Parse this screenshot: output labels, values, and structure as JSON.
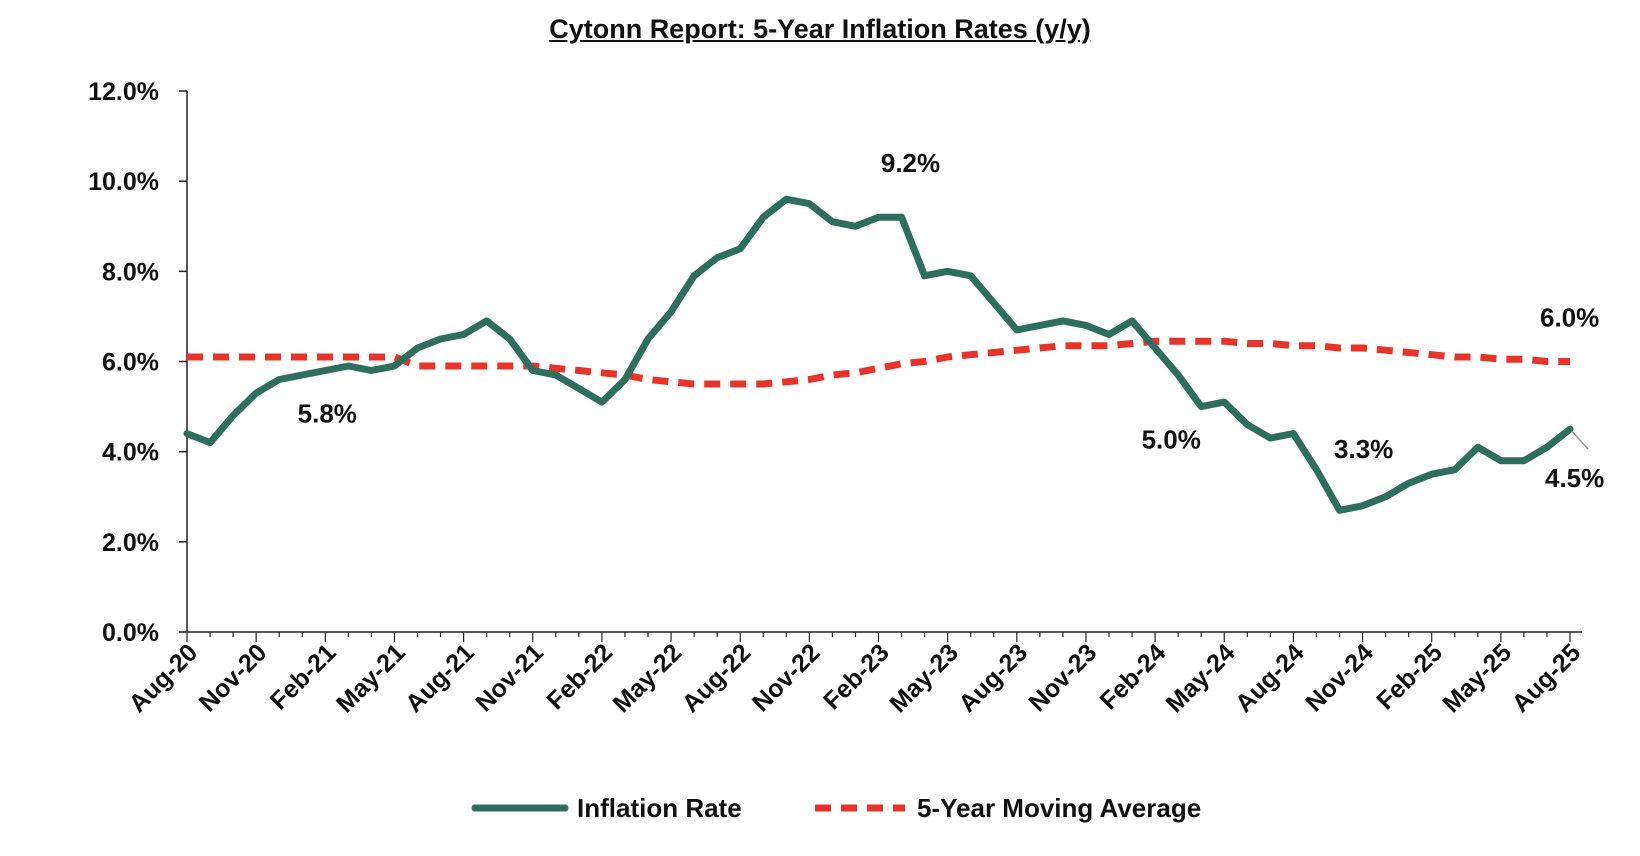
{
  "chart_data": {
    "type": "line",
    "title": "Cytonn Report: 5-Year Inflation Rates (y/y)",
    "xlabel": "",
    "ylabel": "",
    "ylim": [
      0,
      12
    ],
    "y_ticks": [
      "0.0%",
      "2.0%",
      "4.0%",
      "6.0%",
      "8.0%",
      "10.0%",
      "12.0%"
    ],
    "x_tick_labels": [
      "Aug-20",
      "Nov-20",
      "Feb-21",
      "May-21",
      "Aug-21",
      "Nov-21",
      "Feb-22",
      "May-22",
      "Aug-22",
      "Nov-22",
      "Feb-23",
      "May-23",
      "Aug-23",
      "Nov-23",
      "Feb-24",
      "May-24",
      "Aug-24",
      "Nov-24",
      "Feb-25",
      "May-25",
      "Aug-25"
    ],
    "x": [
      "Aug-20",
      "Sep-20",
      "Oct-20",
      "Nov-20",
      "Dec-20",
      "Jan-21",
      "Feb-21",
      "Mar-21",
      "Apr-21",
      "May-21",
      "Jun-21",
      "Jul-21",
      "Aug-21",
      "Sep-21",
      "Oct-21",
      "Nov-21",
      "Dec-21",
      "Jan-22",
      "Feb-22",
      "Mar-22",
      "Apr-22",
      "May-22",
      "Jun-22",
      "Jul-22",
      "Aug-22",
      "Sep-22",
      "Oct-22",
      "Nov-22",
      "Dec-22",
      "Jan-23",
      "Feb-23",
      "Mar-23",
      "Apr-23",
      "May-23",
      "Jun-23",
      "Jul-23",
      "Aug-23",
      "Sep-23",
      "Oct-23",
      "Nov-23",
      "Dec-23",
      "Jan-24",
      "Feb-24",
      "Mar-24",
      "Apr-24",
      "May-24",
      "Jun-24",
      "Jul-24",
      "Aug-24",
      "Sep-24",
      "Oct-24",
      "Nov-24",
      "Dec-24",
      "Jan-25",
      "Feb-25",
      "Mar-25",
      "Apr-25",
      "May-25",
      "Jun-25",
      "Jul-25",
      "Aug-25"
    ],
    "series": [
      {
        "name": "Inflation Rate",
        "color": "#2e6e5c",
        "style": "solid",
        "values": [
          4.4,
          4.2,
          4.8,
          5.3,
          5.6,
          5.7,
          5.8,
          5.9,
          5.8,
          5.9,
          6.3,
          6.5,
          6.6,
          6.9,
          6.5,
          5.8,
          5.7,
          5.4,
          5.1,
          5.6,
          6.5,
          7.1,
          7.9,
          8.3,
          8.5,
          9.2,
          9.6,
          9.5,
          9.1,
          9.0,
          9.2,
          9.2,
          7.9,
          8.0,
          7.9,
          7.3,
          6.7,
          6.8,
          6.9,
          6.8,
          6.6,
          6.9,
          6.3,
          5.7,
          5.0,
          5.1,
          4.6,
          4.3,
          4.4,
          3.6,
          2.7,
          2.8,
          3.0,
          3.3,
          3.5,
          3.6,
          4.1,
          3.8,
          3.8,
          4.1,
          4.5
        ]
      },
      {
        "name": "5-Year Moving Average",
        "color": "#e8332a",
        "style": "dashed",
        "values": [
          6.1,
          6.1,
          6.1,
          6.1,
          6.1,
          6.1,
          6.1,
          6.1,
          6.1,
          6.1,
          5.9,
          5.9,
          5.9,
          5.9,
          5.9,
          5.9,
          5.85,
          5.8,
          5.75,
          5.7,
          5.6,
          5.55,
          5.5,
          5.5,
          5.5,
          5.5,
          5.55,
          5.6,
          5.7,
          5.75,
          5.85,
          5.95,
          6.0,
          6.1,
          6.15,
          6.2,
          6.25,
          6.3,
          6.35,
          6.35,
          6.35,
          6.4,
          6.45,
          6.45,
          6.45,
          6.45,
          6.4,
          6.4,
          6.35,
          6.35,
          6.3,
          6.3,
          6.25,
          6.2,
          6.15,
          6.1,
          6.1,
          6.05,
          6.05,
          6.0,
          6.0
        ]
      }
    ],
    "annotations": [
      {
        "text": "5.8%",
        "x": "Feb-21",
        "y": 5.8
      },
      {
        "text": "9.2%",
        "x": "Feb-23",
        "y": 9.2
      },
      {
        "text": "5.0%",
        "x": "Apr-24",
        "y": 5.0
      },
      {
        "text": "3.3%",
        "x": "Jan-25",
        "y": 3.3
      },
      {
        "text": "4.5%",
        "x": "Aug-25",
        "y": 4.5
      },
      {
        "text": "6.0%",
        "x": "Aug-25",
        "y": 6.0
      }
    ],
    "grid": false,
    "legend_position": "bottom"
  }
}
